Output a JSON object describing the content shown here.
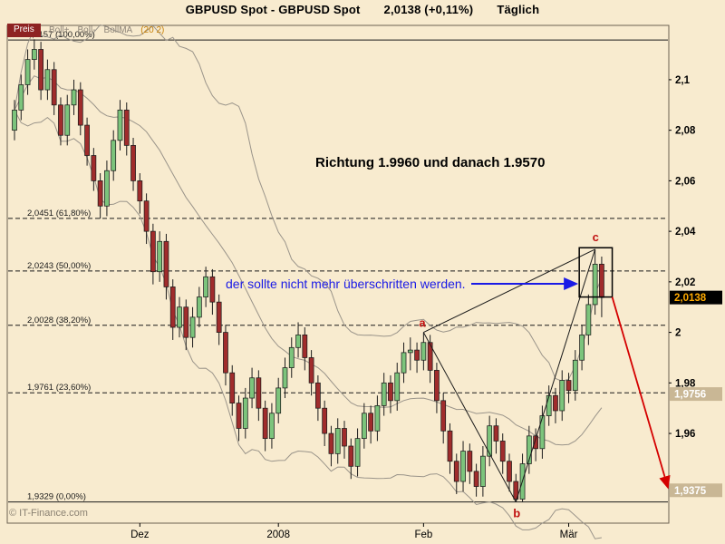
{
  "header": {
    "instrument": "GBPUSD Spot - GBPUSD Spot",
    "quote": "2,0138 (+0,11%)",
    "period": "Täglich"
  },
  "legend": {
    "price_label": "Preis",
    "items": [
      {
        "label": "Boll+",
        "color": "#8d8478"
      },
      {
        "label": "Boll-",
        "color": "#8d8478"
      },
      {
        "label": "BollMA",
        "color": "#8d8478"
      },
      {
        "label": "(20 2)",
        "color": "#c8820a"
      }
    ]
  },
  "annotations": {
    "target_text": "Richtung 1.9960 und danach 1.9570",
    "note_text": "der sollte nicht mehr überschritten werden.",
    "point_a": "a",
    "point_b": "b",
    "point_c": "c"
  },
  "footer": {
    "copyright": "© IT-Finance.com"
  },
  "colors": {
    "background": "#f8ebcf",
    "candle_up": "#7cc47c",
    "candle_down": "#a02c2c",
    "candle_outline": "#1c1c1c",
    "bollinger": "#9a948a",
    "fib_line": "#1a1a1a",
    "pattern_line": "#1a1a1a",
    "box": "#000000",
    "arrow_red": "#d40000",
    "note_blue": "#1a1ae6",
    "letter_red": "#c01010",
    "axis_text": "#000000",
    "muted_text": "#8a8172",
    "preis_bg": "#8e2323",
    "border": "#6b6152"
  },
  "chart_data": {
    "type": "candlestick",
    "title": "GBPUSD Spot Täglich",
    "ylabel": "Preis",
    "ylim": [
      1.9245,
      2.1215
    ],
    "grid": false,
    "y_ticks": [
      {
        "label": "2,1",
        "value": 2.1
      },
      {
        "label": "2,08",
        "value": 2.08
      },
      {
        "label": "2,06",
        "value": 2.06
      },
      {
        "label": "2,04",
        "value": 2.04
      },
      {
        "label": "2,02",
        "value": 2.02
      },
      {
        "label": "2",
        "value": 2.0
      },
      {
        "label": "1,98",
        "value": 1.98
      },
      {
        "label": "1,96",
        "value": 1.96
      }
    ],
    "x_ticks": [
      {
        "label": "Dez",
        "index": 19
      },
      {
        "label": "2008",
        "index": 40
      },
      {
        "label": "Feb",
        "index": 62
      },
      {
        "label": "Mär",
        "index": 84
      }
    ],
    "fib_levels": [
      {
        "label": "2,1157 (100,00%)",
        "value": 2.1157,
        "dash": false
      },
      {
        "label": "2,0451 (61,80%)",
        "value": 2.0451,
        "dash": true
      },
      {
        "label": "2,0243 (50,00%)",
        "value": 2.0243,
        "dash": true
      },
      {
        "label": "2,0028 (38,20%)",
        "value": 2.0028,
        "dash": true
      },
      {
        "label": "1,9761 (23,60%)",
        "value": 1.9761,
        "dash": true
      },
      {
        "label": "1,9329 (0,00%)",
        "value": 1.9329,
        "dash": false
      }
    ],
    "price_tags": [
      {
        "label": "2,0138",
        "value": 2.0138,
        "bg": "#000000",
        "fg": "#ffaa00"
      },
      {
        "label": "1,9756",
        "value": 1.9756,
        "bg": "#c9b795",
        "fg": "#ffffff"
      },
      {
        "label": "1,9375",
        "value": 1.9375,
        "bg": "#c9b795",
        "fg": "#ffffff"
      }
    ],
    "bollinger": {
      "period": 20,
      "mult": 2
    },
    "pattern": {
      "a": {
        "index": 62,
        "price": 2.0
      },
      "b": {
        "index": 76,
        "price": 1.9329
      },
      "c": {
        "index": 88,
        "price": 2.0329
      },
      "box": {
        "i1": 85.6,
        "i2": 90.6,
        "p1": 2.014,
        "p2": 2.0335
      },
      "red_arrow_target": 1.9375,
      "blue_arrow_price": 2.0185
    },
    "candles_format": [
      "open",
      "high",
      "low",
      "close"
    ],
    "candles": [
      [
        2.08,
        2.092,
        2.076,
        2.088
      ],
      [
        2.088,
        2.102,
        2.084,
        2.098
      ],
      [
        2.098,
        2.112,
        2.094,
        2.108
      ],
      [
        2.108,
        2.116,
        2.104,
        2.112
      ],
      [
        2.112,
        2.115,
        2.092,
        2.096
      ],
      [
        2.096,
        2.108,
        2.092,
        2.104
      ],
      [
        2.104,
        2.107,
        2.086,
        2.09
      ],
      [
        2.09,
        2.093,
        2.074,
        2.078
      ],
      [
        2.078,
        2.094,
        2.074,
        2.09
      ],
      [
        2.09,
        2.1,
        2.086,
        2.096
      ],
      [
        2.096,
        2.099,
        2.078,
        2.082
      ],
      [
        2.082,
        2.085,
        2.066,
        2.07
      ],
      [
        2.07,
        2.073,
        2.056,
        2.06
      ],
      [
        2.06,
        2.063,
        2.045,
        2.05
      ],
      [
        2.05,
        2.068,
        2.046,
        2.064
      ],
      [
        2.064,
        2.08,
        2.06,
        2.076
      ],
      [
        2.076,
        2.092,
        2.072,
        2.088
      ],
      [
        2.088,
        2.091,
        2.07,
        2.074
      ],
      [
        2.074,
        2.077,
        2.056,
        2.06
      ],
      [
        2.06,
        2.063,
        2.047,
        2.052
      ],
      [
        2.052,
        2.055,
        2.035,
        2.04
      ],
      [
        2.04,
        2.043,
        2.019,
        2.024
      ],
      [
        2.024,
        2.04,
        2.02,
        2.036
      ],
      [
        2.036,
        2.039,
        2.013,
        2.018
      ],
      [
        2.018,
        2.021,
        1.997,
        2.002
      ],
      [
        2.002,
        2.014,
        1.998,
        2.01
      ],
      [
        2.01,
        2.013,
        1.993,
        1.998
      ],
      [
        1.998,
        2.01,
        1.994,
        2.006
      ],
      [
        2.006,
        2.018,
        2.002,
        2.014
      ],
      [
        2.014,
        2.026,
        2.01,
        2.022
      ],
      [
        2.022,
        2.025,
        2.007,
        2.012
      ],
      [
        2.012,
        2.015,
        1.995,
        2.0
      ],
      [
        2.0,
        2.003,
        1.979,
        1.984
      ],
      [
        1.984,
        1.987,
        1.967,
        1.972
      ],
      [
        1.972,
        1.975,
        1.957,
        1.962
      ],
      [
        1.962,
        1.978,
        1.958,
        1.974
      ],
      [
        1.974,
        1.986,
        1.97,
        1.982
      ],
      [
        1.982,
        1.985,
        1.965,
        1.97
      ],
      [
        1.97,
        1.973,
        1.953,
        1.958
      ],
      [
        1.958,
        1.972,
        1.954,
        1.968
      ],
      [
        1.968,
        1.982,
        1.964,
        1.978
      ],
      [
        1.978,
        1.99,
        1.974,
        1.986
      ],
      [
        1.986,
        1.998,
        1.982,
        1.994
      ],
      [
        1.994,
        2.004,
        1.99,
        1.999
      ],
      [
        1.999,
        2.002,
        1.985,
        1.99
      ],
      [
        1.99,
        1.993,
        1.975,
        1.98
      ],
      [
        1.98,
        1.983,
        1.965,
        1.97
      ],
      [
        1.97,
        1.973,
        1.955,
        1.96
      ],
      [
        1.96,
        1.963,
        1.947,
        1.952
      ],
      [
        1.952,
        1.966,
        1.948,
        1.962
      ],
      [
        1.962,
        1.965,
        1.95,
        1.955
      ],
      [
        1.955,
        1.958,
        1.942,
        1.947
      ],
      [
        1.947,
        1.962,
        1.943,
        1.958
      ],
      [
        1.958,
        1.972,
        1.954,
        1.968
      ],
      [
        1.968,
        1.971,
        1.956,
        1.961
      ],
      [
        1.961,
        1.975,
        1.957,
        1.971
      ],
      [
        1.971,
        1.984,
        1.967,
        1.98
      ],
      [
        1.98,
        1.983,
        1.968,
        1.973
      ],
      [
        1.973,
        1.988,
        1.969,
        1.984
      ],
      [
        1.984,
        1.996,
        1.98,
        1.992
      ],
      [
        1.992,
        1.998,
        1.985,
        1.993
      ],
      [
        1.993,
        1.996,
        1.984,
        1.989
      ],
      [
        1.989,
        2.0,
        1.985,
        1.996
      ],
      [
        1.996,
        1.999,
        1.98,
        1.985
      ],
      [
        1.985,
        1.988,
        1.968,
        1.973
      ],
      [
        1.973,
        1.976,
        1.956,
        1.961
      ],
      [
        1.961,
        1.964,
        1.944,
        1.949
      ],
      [
        1.949,
        1.952,
        1.936,
        1.941
      ],
      [
        1.941,
        1.957,
        1.937,
        1.953
      ],
      [
        1.953,
        1.956,
        1.94,
        1.945
      ],
      [
        1.945,
        1.948,
        1.935,
        1.939
      ],
      [
        1.939,
        1.955,
        1.935,
        1.951
      ],
      [
        1.951,
        1.967,
        1.947,
        1.963
      ],
      [
        1.963,
        1.966,
        1.952,
        1.957
      ],
      [
        1.957,
        1.96,
        1.944,
        1.949
      ],
      [
        1.949,
        1.952,
        1.937,
        1.941
      ],
      [
        1.941,
        1.944,
        1.9329,
        1.934
      ],
      [
        1.934,
        1.952,
        1.933,
        1.948
      ],
      [
        1.948,
        1.963,
        1.944,
        1.959
      ],
      [
        1.959,
        1.962,
        1.949,
        1.954
      ],
      [
        1.954,
        1.971,
        1.95,
        1.967
      ],
      [
        1.967,
        1.979,
        1.963,
        1.975
      ],
      [
        1.975,
        1.978,
        1.964,
        1.969
      ],
      [
        1.969,
        1.985,
        1.965,
        1.981
      ],
      [
        1.981,
        1.984,
        1.972,
        1.977
      ],
      [
        1.977,
        1.993,
        1.973,
        1.989
      ],
      [
        1.989,
        2.003,
        1.985,
        1.999
      ],
      [
        1.999,
        2.015,
        1.995,
        2.011
      ],
      [
        2.011,
        2.0329,
        2.007,
        2.027
      ],
      [
        2.027,
        2.03,
        2.006,
        2.0138
      ]
    ]
  }
}
